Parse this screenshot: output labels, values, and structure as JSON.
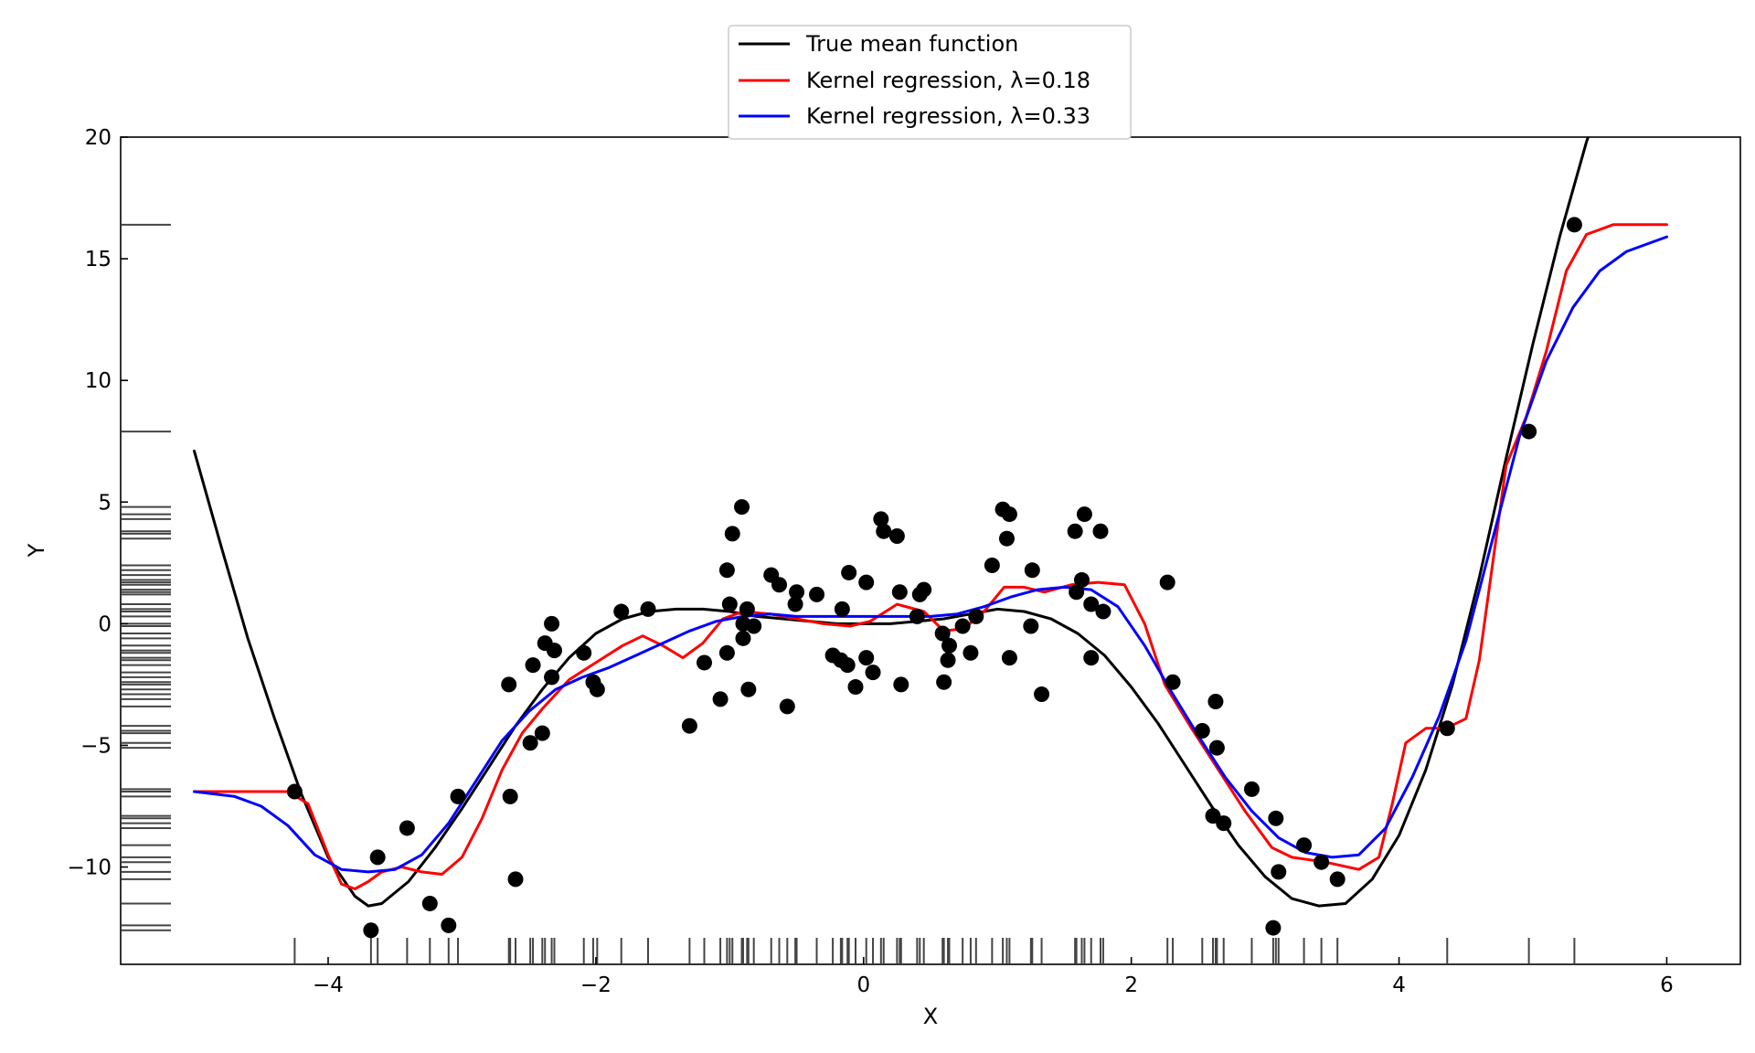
{
  "chart_data": {
    "type": "scatter",
    "title": "",
    "xlabel": "X",
    "ylabel": "Y",
    "xlim": [
      -5.55,
      6.55
    ],
    "ylim": [
      -14,
      20
    ],
    "xticks": [
      -4,
      -2,
      0,
      2,
      4,
      6
    ],
    "yticks": [
      -10,
      -5,
      0,
      5,
      10,
      15,
      20
    ],
    "xtick_labels": [
      "−4",
      "−2",
      "0",
      "2",
      "4",
      "6"
    ],
    "ytick_labels": [
      "−10",
      "−5",
      "0",
      "5",
      "10",
      "15",
      "20"
    ],
    "grid": false,
    "legend": {
      "position": "top-center",
      "entries": [
        {
          "label": "True mean function",
          "color": "#000000"
        },
        {
          "label": "Kernel regression, λ=0.18",
          "color": "#ff0000"
        },
        {
          "label": "Kernel regression, λ=0.33",
          "color": "#0000ff"
        }
      ]
    },
    "true_mean": {
      "color": "#000000",
      "x": [
        -5.0,
        -4.8,
        -4.6,
        -4.4,
        -4.2,
        -4.0,
        -3.8,
        -3.7,
        -3.6,
        -3.4,
        -3.2,
        -3.0,
        -2.8,
        -2.6,
        -2.4,
        -2.2,
        -2.0,
        -1.8,
        -1.6,
        -1.4,
        -1.2,
        -1.0,
        -0.8,
        -0.6,
        -0.4,
        -0.2,
        0.0,
        0.2,
        0.4,
        0.6,
        0.8,
        1.0,
        1.2,
        1.4,
        1.6,
        1.8,
        2.0,
        2.2,
        2.4,
        2.6,
        2.8,
        3.0,
        3.2,
        3.4,
        3.6,
        3.8,
        4.0,
        4.2,
        4.4,
        4.6,
        4.8,
        5.0,
        5.2,
        5.4,
        5.45
      ],
      "y": [
        7.1,
        3.2,
        -0.6,
        -3.9,
        -7.0,
        -9.6,
        -11.2,
        -11.6,
        -11.5,
        -10.6,
        -9.2,
        -7.6,
        -5.9,
        -4.2,
        -2.7,
        -1.4,
        -0.4,
        0.2,
        0.5,
        0.6,
        0.6,
        0.5,
        0.3,
        0.2,
        0.1,
        0.0,
        0.0,
        0.0,
        0.1,
        0.2,
        0.4,
        0.6,
        0.5,
        0.2,
        -0.4,
        -1.3,
        -2.6,
        -4.1,
        -5.8,
        -7.5,
        -9.1,
        -10.4,
        -11.3,
        -11.6,
        -11.5,
        -10.5,
        -8.7,
        -6.0,
        -2.5,
        1.9,
        6.8,
        11.5,
        15.9,
        19.8,
        20.6
      ]
    },
    "kernel_018": {
      "color": "#ff0000",
      "x": [
        -5.0,
        -4.6,
        -4.3,
        -4.15,
        -4.0,
        -3.9,
        -3.8,
        -3.7,
        -3.6,
        -3.45,
        -3.3,
        -3.15,
        -3.0,
        -2.85,
        -2.7,
        -2.55,
        -2.4,
        -2.2,
        -2.0,
        -1.8,
        -1.65,
        -1.5,
        -1.35,
        -1.2,
        -1.05,
        -0.9,
        -0.7,
        -0.5,
        -0.3,
        -0.1,
        0.05,
        0.25,
        0.45,
        0.6,
        0.75,
        0.9,
        1.05,
        1.2,
        1.35,
        1.55,
        1.75,
        1.95,
        2.1,
        2.25,
        2.45,
        2.65,
        2.85,
        3.05,
        3.2,
        3.45,
        3.7,
        3.85,
        3.95,
        4.05,
        4.2,
        4.35,
        4.5,
        4.6,
        4.7,
        4.8,
        4.95,
        5.1,
        5.25,
        5.4,
        5.6,
        5.8,
        6.0
      ],
      "y": [
        -6.9,
        -6.9,
        -6.9,
        -7.4,
        -9.5,
        -10.7,
        -10.9,
        -10.6,
        -10.2,
        -10.0,
        -10.2,
        -10.3,
        -9.6,
        -8.0,
        -6.0,
        -4.5,
        -3.5,
        -2.3,
        -1.6,
        -0.9,
        -0.5,
        -0.9,
        -1.4,
        -0.8,
        0.2,
        0.5,
        0.4,
        0.2,
        0.0,
        -0.1,
        0.1,
        0.8,
        0.5,
        -0.3,
        -0.2,
        0.5,
        1.5,
        1.5,
        1.3,
        1.6,
        1.7,
        1.6,
        0.0,
        -2.5,
        -4.3,
        -6.0,
        -7.7,
        -9.2,
        -9.6,
        -9.8,
        -10.1,
        -9.6,
        -7.4,
        -4.9,
        -4.3,
        -4.3,
        -3.9,
        -1.5,
        2.5,
        6.5,
        8.5,
        11.2,
        14.5,
        16.0,
        16.4,
        16.4,
        16.4
      ]
    },
    "kernel_033": {
      "color": "#0000ff",
      "x": [
        -5.0,
        -4.7,
        -4.5,
        -4.3,
        -4.1,
        -3.9,
        -3.7,
        -3.5,
        -3.3,
        -3.1,
        -2.9,
        -2.7,
        -2.5,
        -2.3,
        -2.1,
        -1.9,
        -1.7,
        -1.5,
        -1.3,
        -1.1,
        -0.9,
        -0.7,
        -0.5,
        -0.3,
        -0.1,
        0.1,
        0.3,
        0.5,
        0.7,
        0.9,
        1.1,
        1.3,
        1.5,
        1.7,
        1.9,
        2.1,
        2.3,
        2.5,
        2.7,
        2.9,
        3.1,
        3.3,
        3.5,
        3.7,
        3.9,
        4.1,
        4.3,
        4.5,
        4.7,
        4.9,
        5.1,
        5.3,
        5.5,
        5.7,
        6.0
      ],
      "y": [
        -6.9,
        -7.1,
        -7.5,
        -8.3,
        -9.5,
        -10.1,
        -10.2,
        -10.1,
        -9.5,
        -8.2,
        -6.5,
        -4.8,
        -3.6,
        -2.7,
        -2.2,
        -1.8,
        -1.3,
        -0.8,
        -0.3,
        0.1,
        0.3,
        0.4,
        0.3,
        0.3,
        0.3,
        0.3,
        0.3,
        0.3,
        0.4,
        0.7,
        1.1,
        1.4,
        1.5,
        1.4,
        0.7,
        -0.9,
        -2.8,
        -4.6,
        -6.3,
        -7.7,
        -8.8,
        -9.4,
        -9.6,
        -9.5,
        -8.4,
        -6.3,
        -3.8,
        -0.7,
        3.5,
        7.7,
        10.8,
        13.0,
        14.5,
        15.3,
        15.9
      ]
    },
    "points": {
      "color": "#000000",
      "x": [
        -4.25,
        -3.68,
        -3.63,
        -3.41,
        -3.24,
        -3.1,
        -3.03,
        -2.65,
        -2.64,
        -2.6,
        -2.49,
        -2.47,
        -2.4,
        -2.38,
        -2.33,
        -2.33,
        -2.31,
        -2.09,
        -2.02,
        -1.99,
        -1.81,
        -1.61,
        -1.3,
        -1.19,
        -1.07,
        -1.02,
        -1.02,
        -1.0,
        -0.98,
        -0.91,
        -0.9,
        -0.9,
        -0.87,
        -0.86,
        -0.82,
        -0.69,
        -0.63,
        -0.57,
        -0.51,
        -0.5,
        -0.35,
        -0.23,
        -0.17,
        -0.16,
        -0.12,
        -0.11,
        -0.06,
        0.02,
        0.02,
        0.07,
        0.13,
        0.15,
        0.25,
        0.27,
        0.28,
        0.4,
        0.42,
        0.45,
        0.59,
        0.6,
        0.63,
        0.64,
        0.74,
        0.8,
        0.84,
        0.96,
        1.04,
        1.07,
        1.09,
        1.09,
        1.25,
        1.26,
        1.33,
        1.58,
        1.59,
        1.63,
        1.65,
        1.7,
        1.7,
        1.77,
        1.79,
        2.27,
        2.31,
        2.53,
        2.61,
        2.63,
        2.64,
        2.69,
        2.9,
        3.06,
        3.08,
        3.1,
        3.29,
        3.42,
        3.54,
        4.36,
        4.97,
        5.31
      ],
      "y": [
        -6.9,
        -12.6,
        -9.6,
        -8.4,
        -11.5,
        -12.4,
        -7.1,
        -2.5,
        -7.1,
        -10.5,
        -4.9,
        -1.7,
        -4.5,
        -0.8,
        0.0,
        -2.2,
        -1.1,
        -1.2,
        -2.4,
        -2.7,
        0.5,
        0.6,
        -4.2,
        -1.6,
        -3.1,
        2.2,
        -1.2,
        0.8,
        3.7,
        4.8,
        0.0,
        -0.6,
        0.6,
        -2.7,
        -0.1,
        2.0,
        1.6,
        -3.4,
        0.8,
        1.3,
        1.2,
        -1.3,
        -1.5,
        0.6,
        -1.7,
        2.1,
        -2.6,
        1.7,
        -1.4,
        -2.0,
        4.3,
        3.8,
        3.6,
        1.3,
        -2.5,
        0.3,
        1.2,
        1.4,
        -0.4,
        -2.4,
        -1.5,
        -0.9,
        -0.1,
        -1.2,
        0.3,
        2.4,
        4.7,
        3.5,
        4.5,
        -1.4,
        -0.1,
        2.2,
        -2.9,
        3.8,
        1.3,
        1.8,
        4.5,
        0.8,
        -1.4,
        3.8,
        0.5,
        1.7,
        -2.4,
        -4.4,
        -7.9,
        -3.2,
        -5.1,
        -8.2,
        -6.8,
        -12.5,
        -8.0,
        -10.2,
        -9.1,
        -9.8,
        -10.5,
        -4.3,
        7.9,
        16.4
      ]
    },
    "rug_x": [
      -4.25,
      -3.68,
      -3.63,
      -3.41,
      -3.24,
      -3.1,
      -3.03,
      -2.65,
      -2.64,
      -2.6,
      -2.49,
      -2.47,
      -2.4,
      -2.38,
      -2.33,
      -2.31,
      -2.09,
      -2.02,
      -1.99,
      -1.81,
      -1.61,
      -1.3,
      -1.19,
      -1.07,
      -1.02,
      -1.0,
      -0.98,
      -0.91,
      -0.9,
      -0.87,
      -0.86,
      -0.82,
      -0.69,
      -0.63,
      -0.57,
      -0.51,
      -0.5,
      -0.35,
      -0.23,
      -0.17,
      -0.16,
      -0.12,
      -0.11,
      -0.06,
      0.02,
      0.07,
      0.13,
      0.15,
      0.25,
      0.27,
      0.28,
      0.4,
      0.42,
      0.45,
      0.59,
      0.6,
      0.63,
      0.64,
      0.74,
      0.8,
      0.84,
      0.96,
      1.04,
      1.07,
      1.09,
      1.25,
      1.26,
      1.33,
      1.58,
      1.59,
      1.63,
      1.65,
      1.7,
      1.77,
      1.79,
      2.27,
      2.31,
      2.53,
      2.61,
      2.63,
      2.64,
      2.69,
      2.9,
      3.06,
      3.08,
      3.1,
      3.29,
      3.42,
      3.54,
      4.36,
      4.97,
      5.31
    ],
    "rug_y": [
      16.4,
      7.9,
      4.8,
      4.5,
      4.3,
      3.8,
      3.7,
      3.5,
      2.4,
      2.2,
      2.0,
      1.8,
      1.7,
      1.6,
      1.4,
      1.3,
      1.2,
      0.8,
      0.6,
      0.5,
      0.3,
      0.0,
      -0.1,
      -0.4,
      -0.6,
      -0.9,
      -1.1,
      -1.2,
      -1.4,
      -1.5,
      -1.7,
      -2.0,
      -2.2,
      -2.4,
      -2.5,
      -2.7,
      -2.9,
      -3.1,
      -3.4,
      -4.2,
      -4.4,
      -4.5,
      -4.9,
      -5.1,
      -6.8,
      -6.9,
      -7.1,
      -7.9,
      -8.0,
      -8.2,
      -8.4,
      -9.1,
      -9.6,
      -9.8,
      -10.2,
      -10.5,
      -11.5,
      -12.4,
      -12.6
    ]
  }
}
